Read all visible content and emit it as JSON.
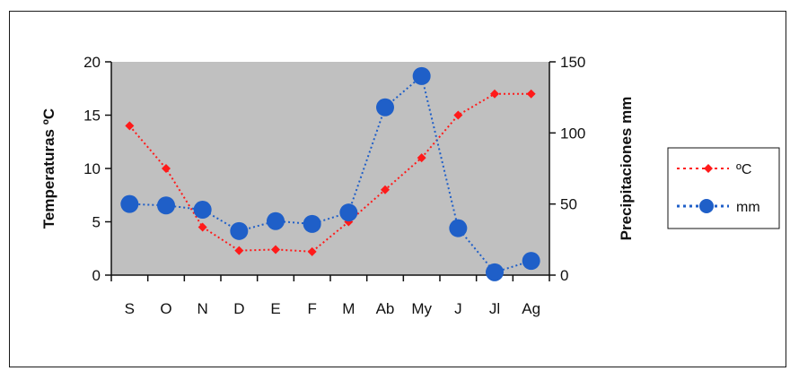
{
  "chart_data": {
    "type": "line",
    "title": "",
    "categories": [
      "S",
      "O",
      "N",
      "D",
      "E",
      "F",
      "M",
      "Ab",
      "My",
      "J",
      "Jl",
      "Ag"
    ],
    "y_left": {
      "label": "Temperaturas ºC",
      "range": [
        0,
        20
      ],
      "ticks": [
        "0",
        "5",
        "10",
        "15",
        "20"
      ]
    },
    "y_right": {
      "label": "Precipitaciones mm",
      "range": [
        0,
        150
      ],
      "ticks": [
        "0",
        "50",
        "100",
        "150"
      ]
    },
    "grid": false,
    "plot_background": "#c0c0c0",
    "legend_position": "right",
    "series": [
      {
        "name": "ºC",
        "axis": "left",
        "color": "#ff1a1a",
        "line_style": "dotted",
        "marker": "diamond",
        "values": [
          14,
          10,
          4.5,
          2.3,
          2.4,
          2.2,
          5,
          8,
          11,
          15,
          17,
          17
        ]
      },
      {
        "name": "mm",
        "axis": "right",
        "color": "#1f5fc8",
        "line_style": "dotted",
        "marker": "circle",
        "values": [
          50,
          49,
          46,
          31,
          38,
          36,
          44,
          118,
          140,
          33,
          2,
          10
        ]
      }
    ]
  }
}
